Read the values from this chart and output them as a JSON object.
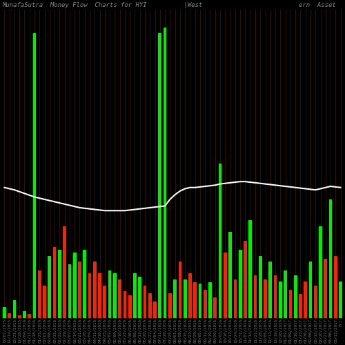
{
  "title": "MunafaSutra  Money Flow  Charts for HYI          |West                          ern  Asset",
  "background_color": "#000000",
  "bar_width": 0.65,
  "grid_color": "#4a2000",
  "line_color": "#ffffff",
  "categories": [
    "12/07/2015",
    "12/14/2015",
    "12/21/2015",
    "12/28/2015",
    "01/04/2016",
    "01/11/2016",
    "01/18/2016",
    "01/25/2016",
    "02/01/2016",
    "02/08/2016",
    "02/15/2016",
    "02/22/2016",
    "02/29/2016",
    "03/07/2016",
    "03/14/2016",
    "03/21/2016",
    "03/28/2016",
    "04/04/2016",
    "04/11/2016",
    "04/18/2016",
    "04/25/2016",
    "05/02/2016",
    "05/09/2016",
    "05/16/2016",
    "05/23/2016",
    "05/30/2016",
    "06/06/2016",
    "06/13/2016",
    "06/20/2016",
    "06/27/2016",
    "07/04/2016",
    "07/11/2016",
    "07/18/2016",
    "07/25/2016",
    "08/01/2016",
    "08/08/2016",
    "08/15/2016",
    "08/22/2016",
    "08/29/2016",
    "09/05/2016",
    "09/12/2016",
    "09/19/2016",
    "09/26/2016",
    "10/03/2016",
    "10/10/2016",
    "10/17/2016",
    "10/24/2016",
    "10/31/2016",
    "11/07/2016",
    "11/14/2016",
    "11/21/2016",
    "11/28/2016",
    "12/05/2016",
    "12/12/2016",
    "12/19/2016",
    "12/26/2016",
    "01/02/2017",
    "01/09/2017",
    "01/16/2017",
    "01/23/2017",
    "01/30/2017",
    "02/06/2017",
    "02/13/2017",
    "02/20/2017",
    "02/27/2017",
    "03/06/2017",
    "03/13/2017",
    "Fri"
  ],
  "values": [
    18,
    8,
    30,
    5,
    12,
    7,
    480,
    80,
    55,
    105,
    120,
    115,
    155,
    90,
    110,
    95,
    115,
    75,
    95,
    75,
    55,
    80,
    75,
    65,
    45,
    38,
    75,
    70,
    55,
    42,
    28,
    480,
    490,
    42,
    65,
    95,
    65,
    75,
    60,
    58,
    48,
    60,
    35,
    260,
    110,
    145,
    65,
    115,
    130,
    165,
    72,
    105,
    65,
    95,
    72,
    62,
    80,
    48,
    72,
    40,
    62,
    95,
    55,
    155,
    100,
    200,
    105,
    62
  ],
  "colors": [
    "#00ee00",
    "#ff2200",
    "#00ee00",
    "#ff2200",
    "#00ee00",
    "#ff2200",
    "#00ee00",
    "#ff2200",
    "#ff2200",
    "#00ee00",
    "#ff2200",
    "#00ee00",
    "#ff2200",
    "#00ee00",
    "#00ee00",
    "#ff2200",
    "#00ee00",
    "#ff2200",
    "#ff2200",
    "#ff2200",
    "#ff2200",
    "#00ee00",
    "#00ee00",
    "#ff2200",
    "#ff2200",
    "#ff2200",
    "#00ee00",
    "#00ee00",
    "#ff2200",
    "#ff2200",
    "#ff2200",
    "#00ee00",
    "#00ee00",
    "#ff2200",
    "#00ee00",
    "#ff2200",
    "#00ee00",
    "#ff2200",
    "#ff2200",
    "#00ee00",
    "#ff2200",
    "#00ee00",
    "#ff2200",
    "#00ee00",
    "#ff2200",
    "#00ee00",
    "#ff2200",
    "#00ee00",
    "#ff2200",
    "#00ee00",
    "#ff2200",
    "#00ee00",
    "#ff2200",
    "#00ee00",
    "#ff2200",
    "#00ee00",
    "#00ee00",
    "#ff2200",
    "#00ee00",
    "#ff2200",
    "#ff2200",
    "#00ee00",
    "#ff2200",
    "#00ee00",
    "#ff2200",
    "#00ee00",
    "#ff2200",
    "#00ee00"
  ],
  "ma_values": [
    220,
    218,
    216,
    213,
    210,
    207,
    204,
    202,
    200,
    198,
    196,
    194,
    192,
    190,
    188,
    186,
    185,
    184,
    183,
    182,
    181,
    181,
    181,
    181,
    181,
    182,
    183,
    184,
    185,
    186,
    187,
    188,
    189,
    200,
    208,
    214,
    218,
    220,
    220,
    221,
    222,
    223,
    224,
    226,
    227,
    228,
    229,
    230,
    230,
    229,
    228,
    227,
    226,
    225,
    224,
    223,
    222,
    221,
    220,
    219,
    218,
    217,
    216,
    218,
    220,
    222,
    221,
    220
  ],
  "ylim": [
    0,
    520
  ],
  "ma_scale": 520,
  "title_fontsize": 6.5,
  "xlabel_fontsize": 4.2
}
